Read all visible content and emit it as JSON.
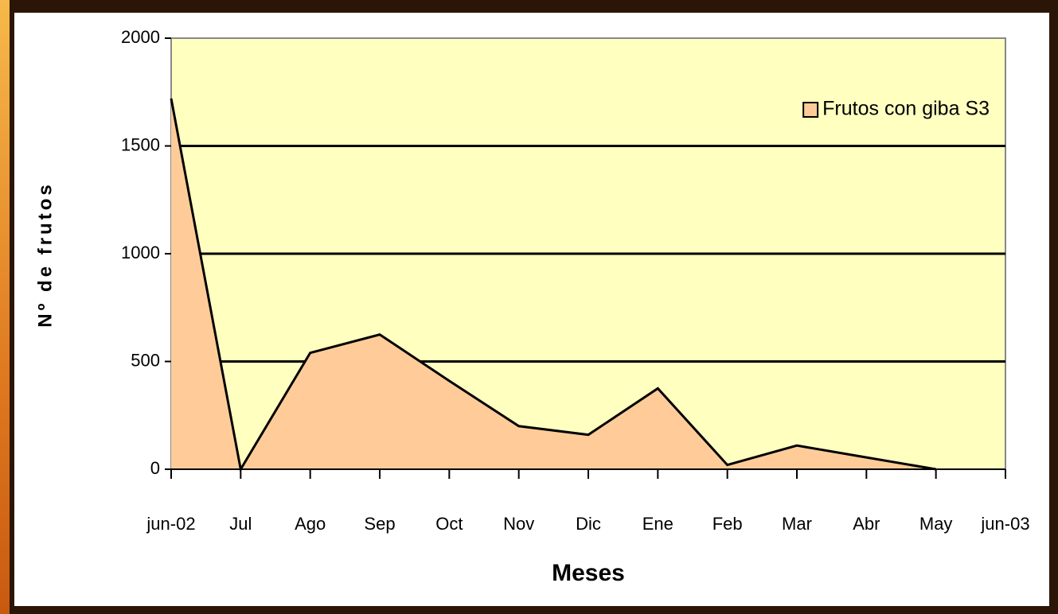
{
  "chart_data": {
    "type": "area",
    "x_label": "Meses",
    "y_label": "Nº de frutos",
    "categories": [
      "jun-02",
      "Jul",
      "Ago",
      "Sep",
      "Oct",
      "Nov",
      "Dic",
      "Ene",
      "Feb",
      "Mar",
      "Abr",
      "May",
      "jun-03"
    ],
    "series": [
      {
        "name": "Frutos con giba S3",
        "color": "#ffcc99",
        "values": [
          1720,
          0,
          540,
          625,
          410,
          200,
          160,
          375,
          20,
          110,
          55,
          0,
          null
        ]
      }
    ],
    "ylim": [
      0,
      2000
    ],
    "yticks": [
      0,
      500,
      1000,
      1500,
      2000
    ],
    "grid": true,
    "legend": "upper right",
    "plot_background": "#ffffc0"
  }
}
